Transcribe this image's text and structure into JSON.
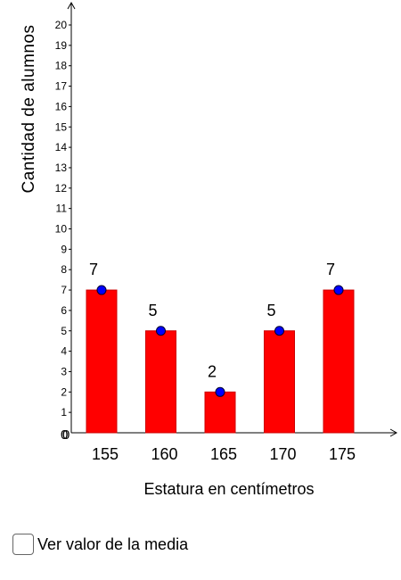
{
  "colors": {
    "bar": "#ff0000",
    "bar_border": "#cc0000",
    "point": "#0000ff",
    "axis": "#000000"
  },
  "chart_data": {
    "type": "bar",
    "xlabel": "Estatura en centímetros",
    "ylabel": "Cantidad de alumnos",
    "categories": [
      "155",
      "160",
      "165",
      "170",
      "175"
    ],
    "values": [
      7,
      5,
      2,
      5,
      7
    ],
    "ylim": [
      0,
      20
    ],
    "yticks": [
      "1",
      "2",
      "3",
      "4",
      "5",
      "6",
      "7",
      "8",
      "9",
      "10",
      "11",
      "12",
      "13",
      "14",
      "15",
      "16",
      "17",
      "18",
      "19",
      "20"
    ],
    "origin_labels": [
      "0",
      "0"
    ],
    "data_labels": [
      "7",
      "5",
      "2",
      "5",
      "7"
    ],
    "grid": false,
    "points_on_bars": true
  },
  "controls": {
    "mean_checkbox_label": "Ver valor de la media",
    "mean_checkbox_checked": false
  }
}
